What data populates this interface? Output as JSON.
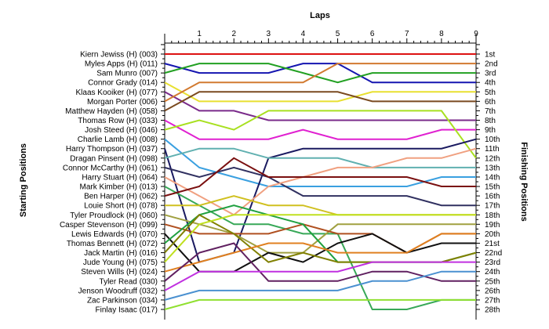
{
  "chart_data": {
    "type": "line",
    "title": "",
    "xlabel": "Laps",
    "ylabel_left": "Starting Positions",
    "ylabel_right": "Finishing Positions",
    "x_ticks": [
      1,
      2,
      3,
      4,
      5,
      6,
      7,
      8,
      9
    ],
    "x_range": [
      0,
      9
    ],
    "y_range": [
      1,
      28
    ],
    "y_reversed": true,
    "grid": false,
    "legend": "none",
    "start_labels": [
      "Kiern Jewiss (H) (003)",
      "Myles Apps (H) (011)",
      "Sam Munro (007)",
      "Connor Grady (014)",
      "Klaas Kooiker (H) (077)",
      "Morgan Porter (006)",
      "Matthew Hayden (H) (058)",
      "Thomas Row (H) (033)",
      "Josh Steed (H) (046)",
      "Charlie Lamb (H) (008)",
      "Harry Thompson (H) (037)",
      "Dragan Pinsent (H) (098)",
      "Connor McCarthy (H) (061)",
      "Harry Stuart (H) (064)",
      "Mark Kimber (H) (013)",
      "Ben Harper (H) (062)",
      "Louie Short (H) (078)",
      "Tyler Proudlock (H) (060)",
      "Casper Stevenson (H) (099)",
      "Lewis Edwards (H) (070)",
      "Thomas Bennett (H) (072)",
      "Jack Martin (H) (016)",
      "Jude Young (H) (075)",
      "Steven Wills (H) (024)",
      "Tyler Read (030)",
      "Jenson Woodruff (032)",
      "Zac Parkinson (034)",
      "Finlay Isaac (017)"
    ],
    "finish_labels": [
      "1st",
      "2nd",
      "3rd",
      "4th",
      "5th",
      "6th",
      "7th",
      "8th",
      "9th",
      "10th",
      "11th",
      "12th",
      "13th",
      "14th",
      "15th",
      "16th",
      "17th",
      "18th",
      "19th",
      "20th",
      "21st",
      "22nd",
      "23rd",
      "24th",
      "25th",
      "26th",
      "27th",
      "28th"
    ],
    "series": [
      {
        "color": "#dd1111",
        "values": [
          1,
          1,
          1,
          1,
          1,
          1,
          1,
          1,
          1,
          1
        ]
      },
      {
        "color": "#1515b0",
        "values": [
          2,
          3,
          3,
          3,
          2,
          2,
          4,
          4,
          4,
          4
        ]
      },
      {
        "color": "#22a022",
        "values": [
          3,
          2,
          2,
          2,
          3,
          4,
          3,
          3,
          3,
          3
        ]
      },
      {
        "color": "#e8e030",
        "values": [
          4,
          6,
          6,
          6,
          6,
          6,
          5,
          5,
          5,
          5
        ]
      },
      {
        "color": "#7a2a8a",
        "values": [
          5,
          7,
          7,
          8,
          8,
          8,
          8,
          8,
          8,
          8
        ]
      },
      {
        "color": "#d27a30",
        "values": [
          6,
          4,
          4,
          4,
          4,
          2,
          2,
          2,
          2,
          2
        ]
      },
      {
        "color": "#7a4a20",
        "values": [
          7,
          5,
          5,
          5,
          5,
          5,
          6,
          6,
          6,
          6
        ]
      },
      {
        "color": "#e020d0",
        "values": [
          8,
          10,
          10,
          10,
          9,
          10,
          10,
          10,
          9,
          9
        ]
      },
      {
        "color": "#a8e020",
        "values": [
          9,
          8,
          9,
          7,
          7,
          7,
          7,
          7,
          7,
          12
        ]
      },
      {
        "color": "#3aa0e0",
        "values": [
          10,
          13,
          14,
          15,
          15,
          15,
          15,
          15,
          14,
          14
        ]
      },
      {
        "color": "#1a1a60",
        "values": [
          11,
          23,
          22,
          12,
          11,
          11,
          11,
          11,
          11,
          10
        ]
      },
      {
        "color": "#60b0b0",
        "values": [
          12,
          11,
          11,
          12,
          12,
          12,
          13,
          13,
          13,
          13
        ]
      },
      {
        "color": "#303060",
        "values": [
          13,
          14,
          13,
          14,
          16,
          16,
          16,
          16,
          17,
          17
        ]
      },
      {
        "color": "#f0a080",
        "values": [
          14,
          16,
          18,
          15,
          14,
          13,
          13,
          12,
          12,
          11
        ]
      },
      {
        "color": "#38a858",
        "values": [
          15,
          17,
          19,
          19,
          20,
          20,
          28,
          28,
          27,
          27
        ]
      },
      {
        "color": "#7a1010",
        "values": [
          16,
          15,
          12,
          14,
          14,
          14,
          14,
          14,
          15,
          15
        ]
      },
      {
        "color": "#d0c020",
        "values": [
          17,
          17,
          16,
          17,
          17,
          18,
          18,
          18,
          18,
          18
        ]
      },
      {
        "color": "#a0a040",
        "values": [
          18,
          19,
          20,
          22,
          22,
          19,
          19,
          19,
          19,
          19
        ]
      },
      {
        "color": "#b05020",
        "values": [
          19,
          20,
          20,
          20,
          19,
          20,
          20,
          22,
          20,
          20
        ]
      },
      {
        "color": "#101010",
        "values": [
          20,
          24,
          24,
          22,
          23,
          21,
          20,
          22,
          21,
          21
        ]
      },
      {
        "color": "#20a040",
        "values": [
          21,
          18,
          17,
          18,
          19,
          23,
          23,
          23,
          23,
          22
        ]
      },
      {
        "color": "#808000",
        "values": [
          22,
          18,
          20,
          23,
          22,
          23,
          23,
          23,
          23,
          22
        ]
      },
      {
        "color": "#c0e020",
        "values": [
          23,
          19,
          18,
          18,
          18,
          18,
          18,
          18,
          18,
          18
        ]
      },
      {
        "color": "#e08020",
        "values": [
          24,
          23,
          22,
          21,
          21,
          22,
          22,
          22,
          20,
          20
        ]
      },
      {
        "color": "#602060",
        "values": [
          25,
          22,
          21,
          25,
          25,
          25,
          24,
          24,
          25,
          25
        ]
      },
      {
        "color": "#c030e0",
        "values": [
          26,
          24,
          24,
          24,
          24,
          24,
          23,
          23,
          23,
          23
        ]
      },
      {
        "color": "#4a90d0",
        "values": [
          27,
          26,
          26,
          26,
          26,
          26,
          25,
          25,
          24,
          24
        ]
      },
      {
        "color": "#90e030",
        "values": [
          28,
          27,
          27,
          27,
          27,
          27,
          27,
          27,
          27,
          27
        ]
      }
    ]
  }
}
